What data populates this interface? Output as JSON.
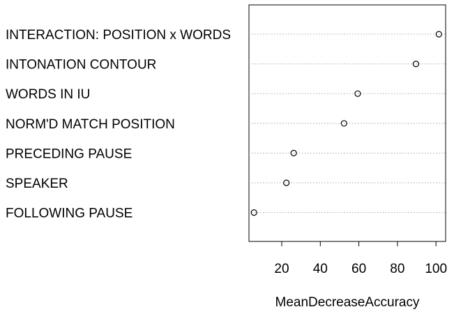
{
  "chart_data": {
    "type": "scatter",
    "title": "",
    "xlabel": "MeanDecreaseAccuracy",
    "ylabel": "",
    "categories": [
      "INTERACTION: POSITION x WORDS",
      "INTONATION CONTOUR",
      "WORDS IN IU",
      "NORM'D MATCH POSITION",
      "PRECEDING PAUSE",
      "SPEAKER",
      "FOLLOWING PAUSE"
    ],
    "values": [
      101.5,
      89.6,
      59.4,
      52.3,
      26.2,
      22.4,
      5.6
    ],
    "xlim": [
      3,
      105
    ],
    "xticks": [
      20,
      40,
      60,
      80,
      100
    ],
    "grid": "horizontal-dotted",
    "legend": "none",
    "colors": {
      "marker": "#000000",
      "grid": "#aaaaaa",
      "frame": "#000000"
    }
  }
}
